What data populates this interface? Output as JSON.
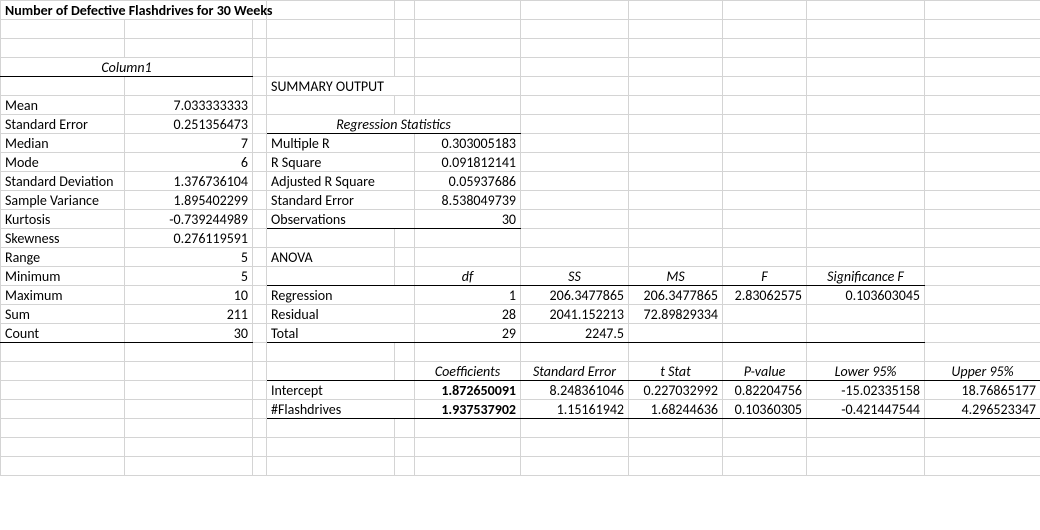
{
  "title": "Number of Defective Flashdrives for 30 Weeks",
  "col1_header": "Column1",
  "stats": {
    "mean_lbl": "Mean",
    "mean": "7.033333333",
    "se_lbl": "Standard Error",
    "se": "0.251356473",
    "median_lbl": "Median",
    "median": "7",
    "mode_lbl": "Mode",
    "mode": "6",
    "sd_lbl": "Standard Deviation",
    "sd": "1.376736104",
    "sv_lbl": "Sample Variance",
    "sv": "1.895402299",
    "kurt_lbl": "Kurtosis",
    "kurt": "-0.739244989",
    "skew_lbl": "Skewness",
    "skew": "0.276119591",
    "range_lbl": "Range",
    "range": "5",
    "min_lbl": "Minimum",
    "min": "5",
    "max_lbl": "Maximum",
    "max": "10",
    "sum_lbl": "Sum",
    "sum": "211",
    "count_lbl": "Count",
    "count": "30"
  },
  "summary_output": "SUMMARY OUTPUT",
  "reg_stats_hdr": "Regression Statistics",
  "reg": {
    "mr_lbl": "Multiple R",
    "mr": "0.303005183",
    "r2_lbl": "R Square",
    "r2": "0.091812141",
    "ar2_lbl": "Adjusted R Square",
    "ar2": "0.05937686",
    "se_lbl": "Standard Error",
    "se": "8.538049739",
    "obs_lbl": "Observations",
    "obs": "30"
  },
  "anova_hdr": "ANOVA",
  "anova_cols": {
    "df": "df",
    "ss": "SS",
    "ms": "MS",
    "f": "F",
    "sigf": "Significance F"
  },
  "anova": {
    "regression_lbl": "Regression",
    "residual_lbl": "Residual",
    "total_lbl": "Total",
    "reg": {
      "df": "1",
      "ss": "206.3477865",
      "ms": "206.3477865",
      "f": "2.83062575",
      "sigf": "0.103603045"
    },
    "res": {
      "df": "28",
      "ss": "2041.152213",
      "ms": "72.89829334"
    },
    "total": {
      "df": "29",
      "ss": "2247.5"
    }
  },
  "coef_cols": {
    "coef": "Coefficients",
    "se": "Standard Error",
    "t": "t Stat",
    "p": "P-value",
    "low": "Lower 95%",
    "upp": "Upper 95%"
  },
  "coef": {
    "intercept_lbl": "Intercept",
    "flash_lbl": "#Flashdrives",
    "intercept": {
      "coef": "1.872650091",
      "se": "8.248361046",
      "t": "0.227032992",
      "p": "0.82204756",
      "low": "-15.02335158",
      "upp": "18.76865177"
    },
    "flash": {
      "coef": "1.937537902",
      "se": "1.15161942",
      "t": "1.68244636",
      "p": "0.10360305",
      "low": "-0.421447544",
      "upp": "4.296523347"
    }
  }
}
